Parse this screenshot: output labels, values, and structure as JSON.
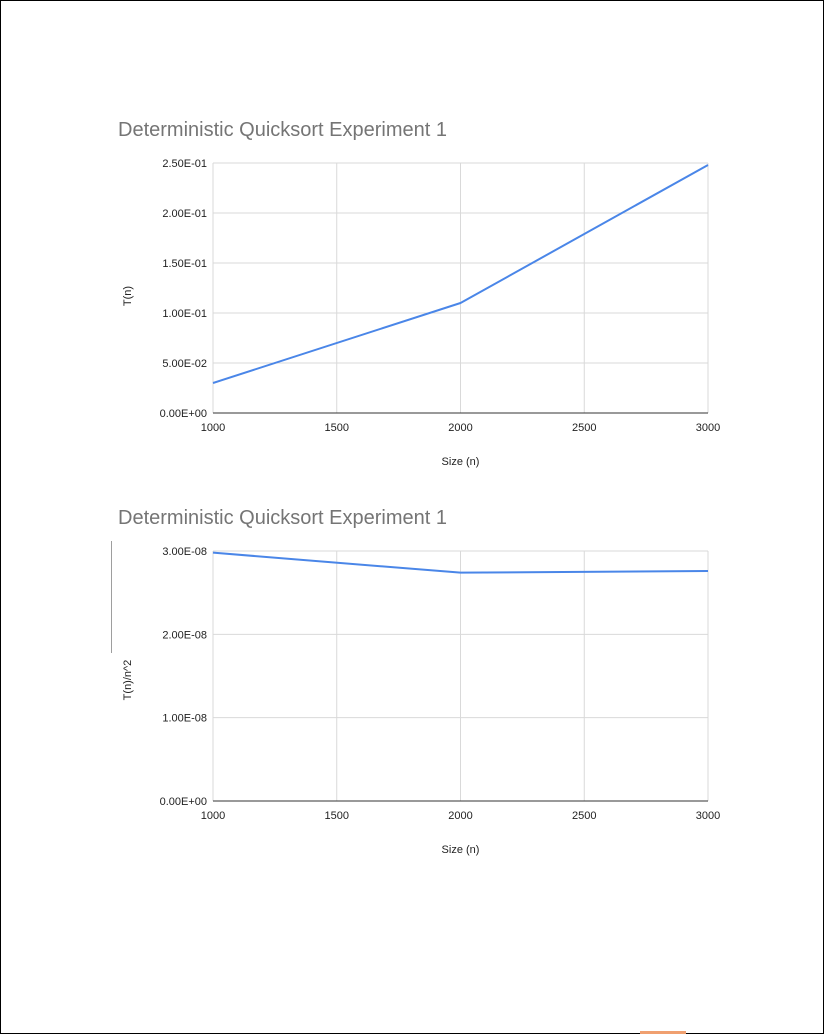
{
  "chart_data": [
    {
      "type": "line",
      "title": "Deterministic Quicksort Experiment 1",
      "xlabel": "Size (n)",
      "ylabel": "T(n)",
      "x": [
        1000,
        2000,
        3000
      ],
      "xticks": [
        "1000",
        "1500",
        "2000",
        "2500",
        "3000"
      ],
      "xtick_values": [
        1000,
        1500,
        2000,
        2500,
        3000
      ],
      "yticks": [
        "0.00E+00",
        "5.00E-02",
        "1.00E-01",
        "1.50E-01",
        "2.00E-01",
        "2.50E-01"
      ],
      "ytick_values": [
        0,
        0.05,
        0.1,
        0.15,
        0.2,
        0.25
      ],
      "xlim": [
        1000,
        3000
      ],
      "ylim": [
        0,
        0.25
      ],
      "grid": true,
      "series": [
        {
          "values": [
            0.03,
            0.11,
            0.248
          ],
          "color": "#4a86e8"
        }
      ]
    },
    {
      "type": "line",
      "title": "Deterministic Quicksort Experiment 1",
      "xlabel": "Size (n)",
      "ylabel": "T(n)/n^2",
      "x": [
        1000,
        2000,
        3000
      ],
      "xticks": [
        "1000",
        "1500",
        "2000",
        "2500",
        "3000"
      ],
      "xtick_values": [
        1000,
        1500,
        2000,
        2500,
        3000
      ],
      "yticks": [
        "0.00E+00",
        "1.00E-08",
        "2.00E-08",
        "3.00E-08"
      ],
      "ytick_values": [
        0,
        1e-08,
        2e-08,
        3e-08
      ],
      "xlim": [
        1000,
        3000
      ],
      "ylim": [
        0,
        3e-08
      ],
      "grid": true,
      "series": [
        {
          "values": [
            2.98e-08,
            2.74e-08,
            2.76e-08
          ],
          "color": "#4a86e8"
        }
      ]
    }
  ]
}
